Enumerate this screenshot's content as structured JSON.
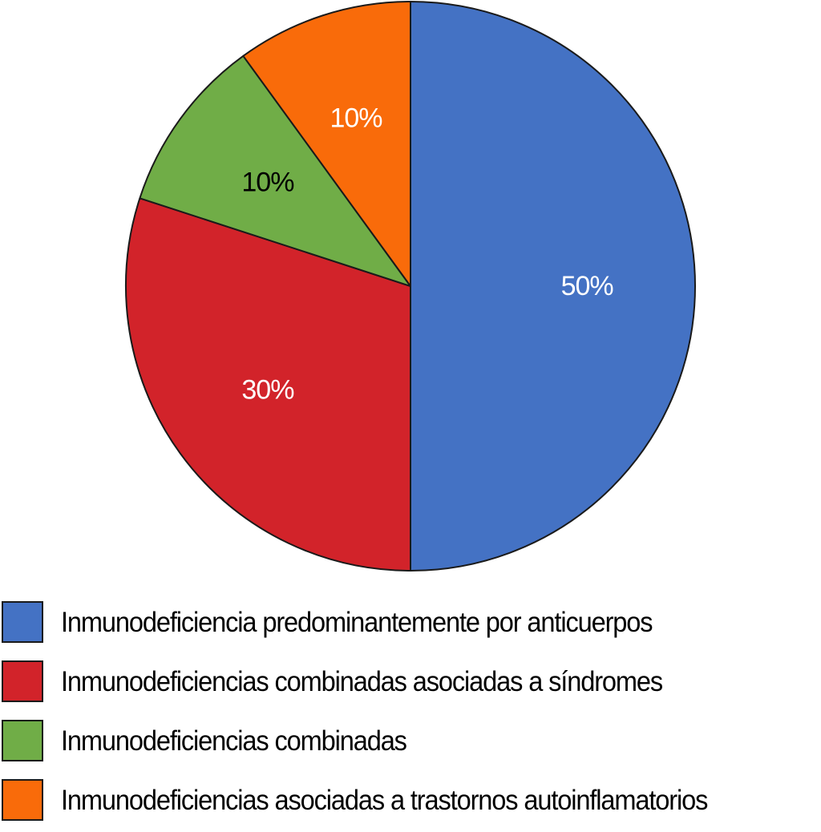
{
  "chart_data": {
    "type": "pie",
    "title": "",
    "start_angle_deg": 0,
    "direction": "clockwise",
    "legend_position": "bottom",
    "slices": [
      {
        "label": "Inmunodeficiencia predominantemente por anticuerpos",
        "value": 50,
        "display": "50%",
        "color": "#4472C4",
        "label_color": "#ffffff"
      },
      {
        "label": "Inmunodeficiencias combinadas asociadas a síndromes",
        "value": 30,
        "display": "30%",
        "color": "#D2232A",
        "label_color": "#ffffff"
      },
      {
        "label": "Inmunodeficiencias combinadas",
        "value": 10,
        "display": "10%",
        "color": "#70AD47",
        "label_color": "#000000"
      },
      {
        "label": "Inmunodeficiencias asociadas a trastornos autoinflamatorios",
        "value": 10,
        "display": "10%",
        "color": "#F96B0A",
        "label_color": "#ffffff"
      }
    ]
  }
}
